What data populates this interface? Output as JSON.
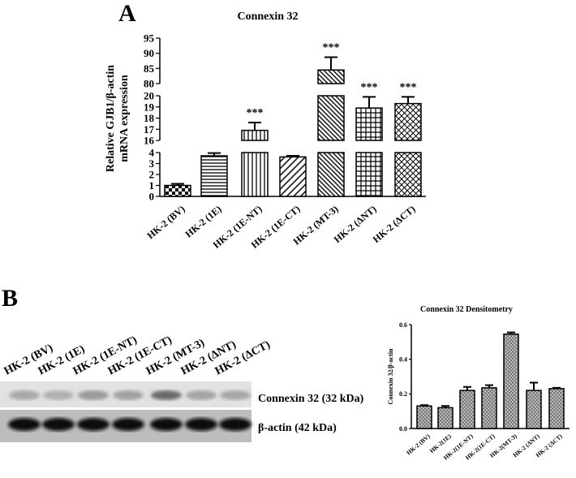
{
  "panel_labels": {
    "a": "A",
    "b": "B"
  },
  "blot": {
    "lanes": [
      "HK-2 (BV)",
      "HK-2 (1E)",
      "HK-2 (1E-NT)",
      "HK-2 (1E-CT)",
      "HK-2 (MT-3)",
      "HK-2 (ΔNT)",
      "HK-2 (ΔCT)"
    ],
    "rows": [
      "Connexin 32 (32 kDa)",
      "β-actin (42 kDa)"
    ]
  },
  "chart_data": [
    {
      "type": "bar",
      "title": "Connexin 32",
      "ylabel": [
        "Relative GJB1/β-actin",
        "mRNA expression"
      ],
      "categories": [
        "HK-2 (BV)",
        "HK-2 (1E)",
        "HK-2 (1E-NT)",
        "HK-2 (1E-CT)",
        "HK-2 (MT-3)",
        "HK-2 (ΔNT)",
        "HK-2 (ΔCT)"
      ],
      "values": [
        1.0,
        3.7,
        16.9,
        3.6,
        84.5,
        18.9,
        19.3
      ],
      "errors": [
        0.15,
        0.25,
        0.7,
        0.1,
        4.2,
        1.0,
        0.6
      ],
      "annotations": [
        null,
        null,
        "***",
        null,
        "***",
        "***",
        "***"
      ],
      "color": "#000000",
      "y_segments": [
        {
          "ylim": [
            0,
            4
          ],
          "yticks": [
            0,
            1,
            2,
            3,
            4
          ]
        },
        {
          "ylim": [
            16,
            20
          ],
          "yticks": [
            16,
            17,
            18,
            19,
            20
          ]
        },
        {
          "ylim": [
            80,
            95
          ],
          "yticks": [
            80,
            85,
            90,
            95
          ]
        }
      ]
    },
    {
      "type": "bar",
      "title": "Connexin 32  Densitometry",
      "ylabel": [
        "Connexin 32/β-actin"
      ],
      "categories": [
        "HK-2 (BV)",
        "HK-2(1E)",
        "HK-2(1E-NT)",
        "HK-2(1E-CT)",
        "HK-2(MT-3)",
        "HK-2 (ΔNT)",
        "HK-2 (ΔCT)"
      ],
      "values": [
        0.13,
        0.12,
        0.22,
        0.235,
        0.545,
        0.22,
        0.23
      ],
      "errors": [
        0.005,
        0.01,
        0.02,
        0.015,
        0.01,
        0.045,
        0.005
      ],
      "color": "#000000",
      "y_segments": [
        {
          "ylim": [
            0,
            0.6
          ],
          "yticks": [
            {
              "value": 0,
              "label": "0.0"
            },
            0.2,
            0.4,
            0.6
          ]
        }
      ]
    }
  ]
}
